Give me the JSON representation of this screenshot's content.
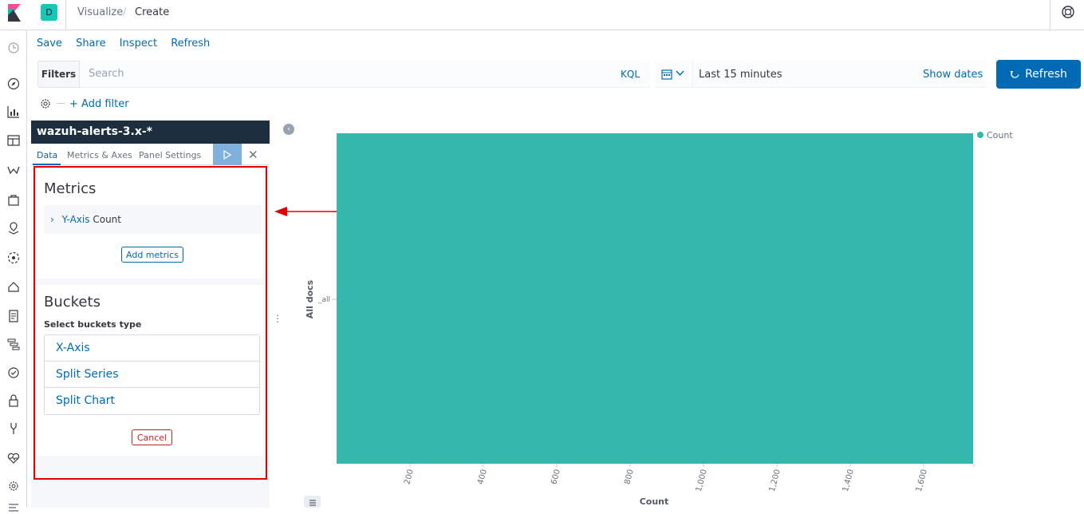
{
  "header": {
    "space_initial": "D",
    "breadcrumbs": [
      "Visualize",
      "Create"
    ],
    "separator": "/"
  },
  "top_menu": [
    "Save",
    "Share",
    "Inspect",
    "Refresh"
  ],
  "query_bar": {
    "filters_label": "Filters",
    "search_placeholder": "Search",
    "language": "KQL",
    "time_range": "Last 15 minutes",
    "show_dates": "Show dates",
    "refresh_label": "Refresh"
  },
  "filter_bar": {
    "add_filter": "+ Add filter"
  },
  "editor": {
    "index_pattern": "wazuh-alerts-3.x-*",
    "tabs": [
      "Data",
      "Metrics & Axes",
      "Panel Settings"
    ],
    "active_tab": "Data",
    "metrics": {
      "title": "Metrics",
      "agg_axis": "Y-Axis",
      "agg_type": "Count",
      "add_button": "Add metrics"
    },
    "buckets": {
      "title": "Buckets",
      "select_label": "Select buckets type",
      "options": [
        "X-Axis",
        "Split Series",
        "Split Chart"
      ],
      "cancel_button": "Cancel"
    }
  },
  "colors": {
    "accent": "#006bb4",
    "bar": "#36b7ae",
    "nav_dark": "#1d2f3f",
    "highlight_box": "#e00000",
    "arrow": "#e00000"
  },
  "chart_data": {
    "type": "bar",
    "orientation": "horizontal",
    "categories": [
      "_all"
    ],
    "series": [
      {
        "name": "Count",
        "values": [
          1735
        ]
      }
    ],
    "xlabel": "Count",
    "ylabel": "All docs",
    "x_ticks": [
      "200",
      "400",
      "600",
      "800",
      "1,000",
      "1,200",
      "1,400",
      "1,600"
    ],
    "tick_values": [
      200,
      400,
      600,
      800,
      1000,
      1200,
      1400,
      1600
    ],
    "xlim": [
      0,
      1735
    ],
    "legend": {
      "placement": "top-right",
      "entries": [
        "Count"
      ]
    },
    "grid": false
  }
}
